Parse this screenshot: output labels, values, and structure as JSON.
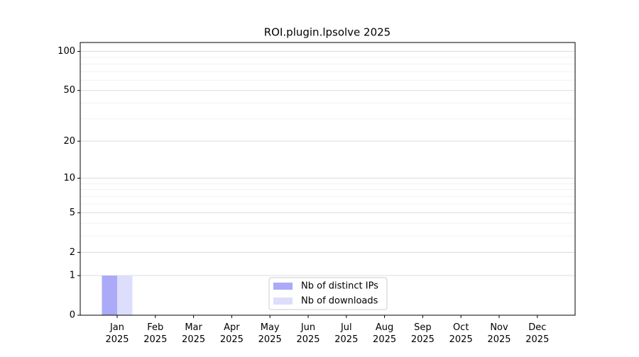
{
  "chart_data": {
    "type": "bar",
    "title": "ROI.plugin.lpsolve 2025",
    "categories": [
      [
        "Jan",
        "2025"
      ],
      [
        "Feb",
        "2025"
      ],
      [
        "Mar",
        "2025"
      ],
      [
        "Apr",
        "2025"
      ],
      [
        "May",
        "2025"
      ],
      [
        "Jun",
        "2025"
      ],
      [
        "Jul",
        "2025"
      ],
      [
        "Aug",
        "2025"
      ],
      [
        "Sep",
        "2025"
      ],
      [
        "Oct",
        "2025"
      ],
      [
        "Nov",
        "2025"
      ],
      [
        "Dec",
        "2025"
      ]
    ],
    "series": [
      {
        "name": "Nb of distinct IPs",
        "color": "#aaaaf8",
        "values": [
          1,
          0,
          0,
          0,
          0,
          0,
          0,
          0,
          0,
          0,
          0,
          0
        ]
      },
      {
        "name": "Nb of downloads",
        "color": "#ddddfc",
        "values": [
          1,
          0,
          0,
          0,
          0,
          0,
          0,
          0,
          0,
          0,
          0,
          0
        ]
      }
    ],
    "y_scale": "log1p",
    "ylim": [
      0,
      117
    ],
    "yticks": [
      0,
      1,
      2,
      5,
      10,
      20,
      50,
      100
    ],
    "minor_yticks": [
      3,
      4,
      6,
      7,
      8,
      9,
      30,
      40,
      60,
      70,
      80,
      90
    ],
    "grid": true,
    "legend": "lower center"
  }
}
